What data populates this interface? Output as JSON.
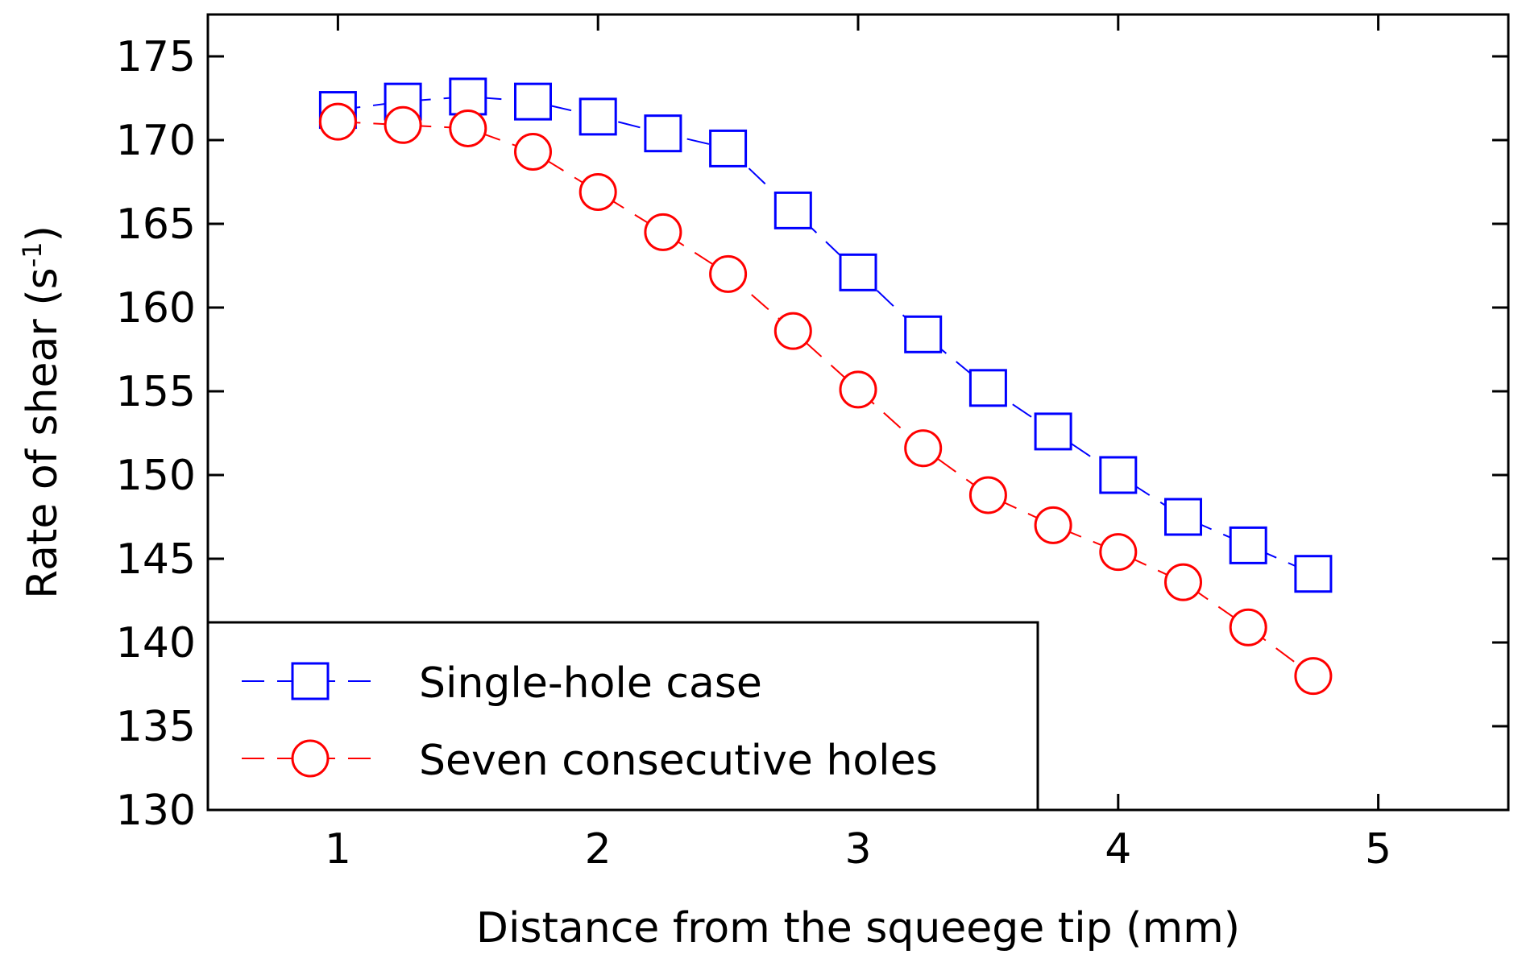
{
  "chart_data": {
    "type": "line",
    "title": "",
    "xlabel": "Distance from the squeege tip (mm)",
    "ylabel_main": "Rate of shear (s",
    "ylabel_sup": "-1",
    "ylabel_close": ")",
    "xlim": [
      0.5,
      5.5
    ],
    "ylim": [
      130,
      177.5
    ],
    "xticks": [
      1,
      2,
      3,
      4,
      5
    ],
    "yticks": [
      130,
      135,
      140,
      145,
      150,
      155,
      160,
      165,
      170,
      175
    ],
    "grid": false,
    "legend_position": "bottom-left",
    "series": [
      {
        "name": "Single-hole case",
        "color": "#0000ff",
        "marker": "square",
        "line_style": "dashed",
        "x": [
          1.0,
          1.25,
          1.5,
          1.75,
          2.0,
          2.25,
          2.5,
          2.75,
          3.0,
          3.25,
          3.5,
          3.75,
          4.0,
          4.25,
          4.5,
          4.75
        ],
        "y": [
          171.8,
          172.3,
          172.6,
          172.3,
          171.4,
          170.4,
          169.5,
          165.8,
          162.1,
          158.4,
          155.2,
          152.6,
          150.0,
          147.5,
          145.8,
          144.1
        ]
      },
      {
        "name": "Seven consecutive holes",
        "color": "#ff0000",
        "marker": "circle",
        "line_style": "dashed",
        "x": [
          1.0,
          1.25,
          1.5,
          1.75,
          2.0,
          2.25,
          2.5,
          2.75,
          3.0,
          3.25,
          3.5,
          3.75,
          4.0,
          4.25,
          4.5,
          4.75
        ],
        "y": [
          171.1,
          170.9,
          170.7,
          169.3,
          166.9,
          164.5,
          162.0,
          158.6,
          155.1,
          151.6,
          148.8,
          147.0,
          145.4,
          143.6,
          140.9,
          138.0
        ]
      }
    ]
  }
}
